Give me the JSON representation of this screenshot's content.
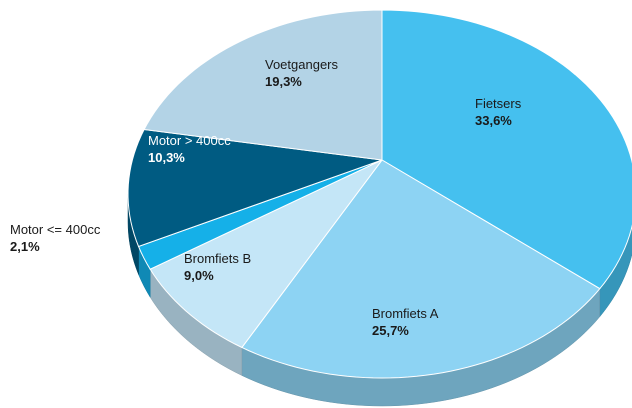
{
  "chart_data": {
    "type": "pie",
    "categories": [
      "Fietsers",
      "Bromfiets A",
      "Bromfiets B",
      "Motor <= 400cc",
      "Motor > 400cc",
      "Voetgangers"
    ],
    "values": [
      33.6,
      25.7,
      9.0,
      2.1,
      10.3,
      19.3
    ],
    "value_labels": [
      "33,6%",
      "25,7%",
      "9,0%",
      "2,1%",
      "10,3%",
      "19,3%"
    ],
    "colors": [
      "#45c0ef",
      "#8dd3f3",
      "#c4e6f7",
      "#15b0e8",
      "#005b82",
      "#b3d3e6"
    ]
  }
}
